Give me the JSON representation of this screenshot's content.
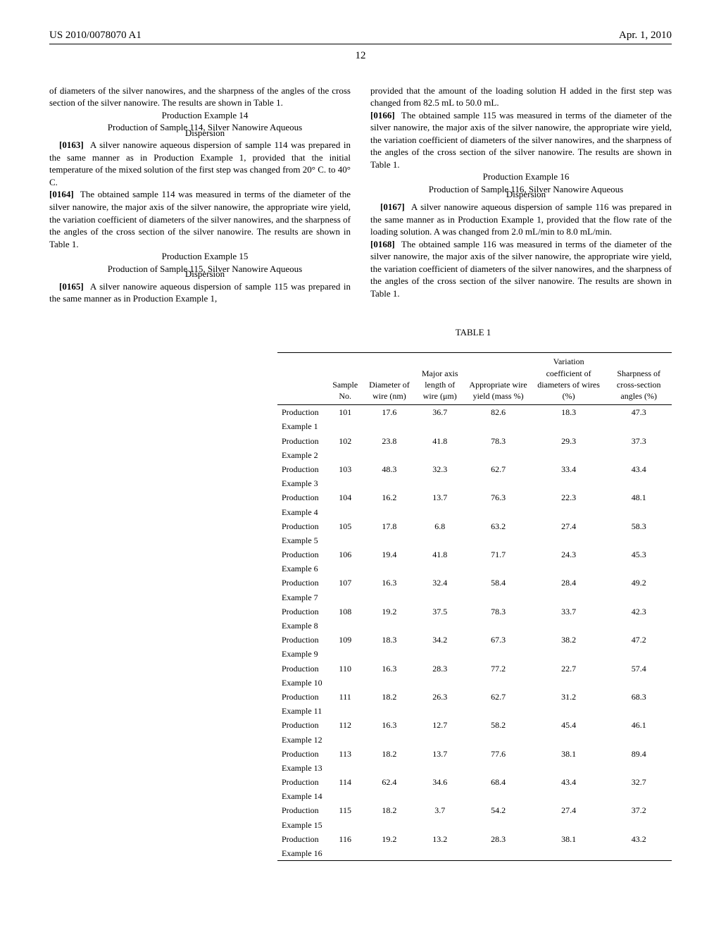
{
  "header": {
    "pub_number": "US 2010/0078070 A1",
    "pub_date": "Apr. 1, 2010"
  },
  "page_number": "12",
  "left_column": {
    "p1": "of diameters of the silver nanowires, and the sharpness of the angles of the cross section of the silver nanowire. The results are shown in Table 1.",
    "ex14_label": "Production Example 14",
    "ex14_title_l1": "Production of Sample 114, Silver Nanowire Aqueous",
    "ex14_title_l2": "Dispersion",
    "p0163_num": "[0163]",
    "p0163_text": "A silver nanowire aqueous dispersion of sample 114 was prepared in the same manner as in Production Example 1, provided that the initial temperature of the mixed solution of the first step was changed from 20° C. to 40° C.",
    "p0164_num": "[0164]",
    "p0164_text": "The obtained sample 114 was measured in terms of the diameter of the silver nanowire, the major axis of the silver nanowire, the appropriate wire yield, the variation coefficient of diameters of the silver nanowires, and the sharpness of the angles of the cross section of the silver nanowire. The results are shown in Table 1.",
    "ex15_label": "Production Example 15",
    "ex15_title_l1": "Production of Sample 115, Silver Nanowire Aqueous",
    "ex15_title_l2": "Dispersion",
    "p0165_num": "[0165]",
    "p0165_text": "A silver nanowire aqueous dispersion of sample 115 was prepared in the same manner as in Production Example 1,"
  },
  "right_column": {
    "p1": "provided that the amount of the loading solution H added in the first step was changed from 82.5 mL to 50.0 mL.",
    "p0166_num": "[0166]",
    "p0166_text": "The obtained sample 115 was measured in terms of the diameter of the silver nanowire, the major axis of the silver nanowire, the appropriate wire yield, the variation coefficient of diameters of the silver nanowires, and the sharpness of the angles of the cross section of the silver nanowire. The results are shown in Table 1.",
    "ex16_label": "Production Example 16",
    "ex16_title_l1": "Production of Sample 116, Silver Nanowire Aqueous",
    "ex16_title_l2": "Dispersion",
    "p0167_num": "[0167]",
    "p0167_text": "A silver nanowire aqueous dispersion of sample 116 was prepared in the same manner as in Production Example 1, provided that the flow rate of the loading solution. A was changed from 2.0 mL/min to 8.0 mL/min.",
    "p0168_num": "[0168]",
    "p0168_text": "The obtained sample 116 was measured in terms of the diameter of the silver nanowire, the major axis of the silver nanowire, the appropriate wire yield, the variation coefficient of diameters of the silver nanowires, and the sharpness of the angles of the cross section of the silver nanowire. The results are shown in Table 1."
  },
  "table": {
    "caption": "TABLE 1",
    "columns": [
      "",
      "Sample No.",
      "Diameter of wire (nm)",
      "Major axis length of wire (μm)",
      "Appropriate wire yield (mass %)",
      "Variation coefficient of diameters of wires (%)",
      "Sharpness of cross-section angles (%)"
    ],
    "rows": [
      {
        "label": "Production Example 1",
        "c": [
          "101",
          "17.6",
          "36.7",
          "82.6",
          "18.3",
          "47.3"
        ]
      },
      {
        "label": "Production Example 2",
        "c": [
          "102",
          "23.8",
          "41.8",
          "78.3",
          "29.3",
          "37.3"
        ]
      },
      {
        "label": "Production Example 3",
        "c": [
          "103",
          "48.3",
          "32.3",
          "62.7",
          "33.4",
          "43.4"
        ]
      },
      {
        "label": "Production Example 4",
        "c": [
          "104",
          "16.2",
          "13.7",
          "76.3",
          "22.3",
          "48.1"
        ]
      },
      {
        "label": "Production Example 5",
        "c": [
          "105",
          "17.8",
          "6.8",
          "63.2",
          "27.4",
          "58.3"
        ]
      },
      {
        "label": "Production Example 6",
        "c": [
          "106",
          "19.4",
          "41.8",
          "71.7",
          "24.3",
          "45.3"
        ]
      },
      {
        "label": "Production Example 7",
        "c": [
          "107",
          "16.3",
          "32.4",
          "58.4",
          "28.4",
          "49.2"
        ]
      },
      {
        "label": "Production Example 8",
        "c": [
          "108",
          "19.2",
          "37.5",
          "78.3",
          "33.7",
          "42.3"
        ]
      },
      {
        "label": "Production Example 9",
        "c": [
          "109",
          "18.3",
          "34.2",
          "67.3",
          "38.2",
          "47.2"
        ]
      },
      {
        "label": "Production Example 10",
        "c": [
          "110",
          "16.3",
          "28.3",
          "77.2",
          "22.7",
          "57.4"
        ]
      },
      {
        "label": "Production Example 11",
        "c": [
          "111",
          "18.2",
          "26.3",
          "62.7",
          "31.2",
          "68.3"
        ]
      },
      {
        "label": "Production Example 12",
        "c": [
          "112",
          "16.3",
          "12.7",
          "58.2",
          "45.4",
          "46.1"
        ]
      },
      {
        "label": "Production Example 13",
        "c": [
          "113",
          "18.2",
          "13.7",
          "77.6",
          "38.1",
          "89.4"
        ]
      },
      {
        "label": "Production Example 14",
        "c": [
          "114",
          "62.4",
          "34.6",
          "68.4",
          "43.4",
          "32.7"
        ]
      },
      {
        "label": "Production Example 15",
        "c": [
          "115",
          "18.2",
          "3.7",
          "54.2",
          "27.4",
          "37.2"
        ]
      },
      {
        "label": "Production Example 16",
        "c": [
          "116",
          "19.2",
          "13.2",
          "28.3",
          "38.1",
          "43.2"
        ]
      }
    ]
  }
}
